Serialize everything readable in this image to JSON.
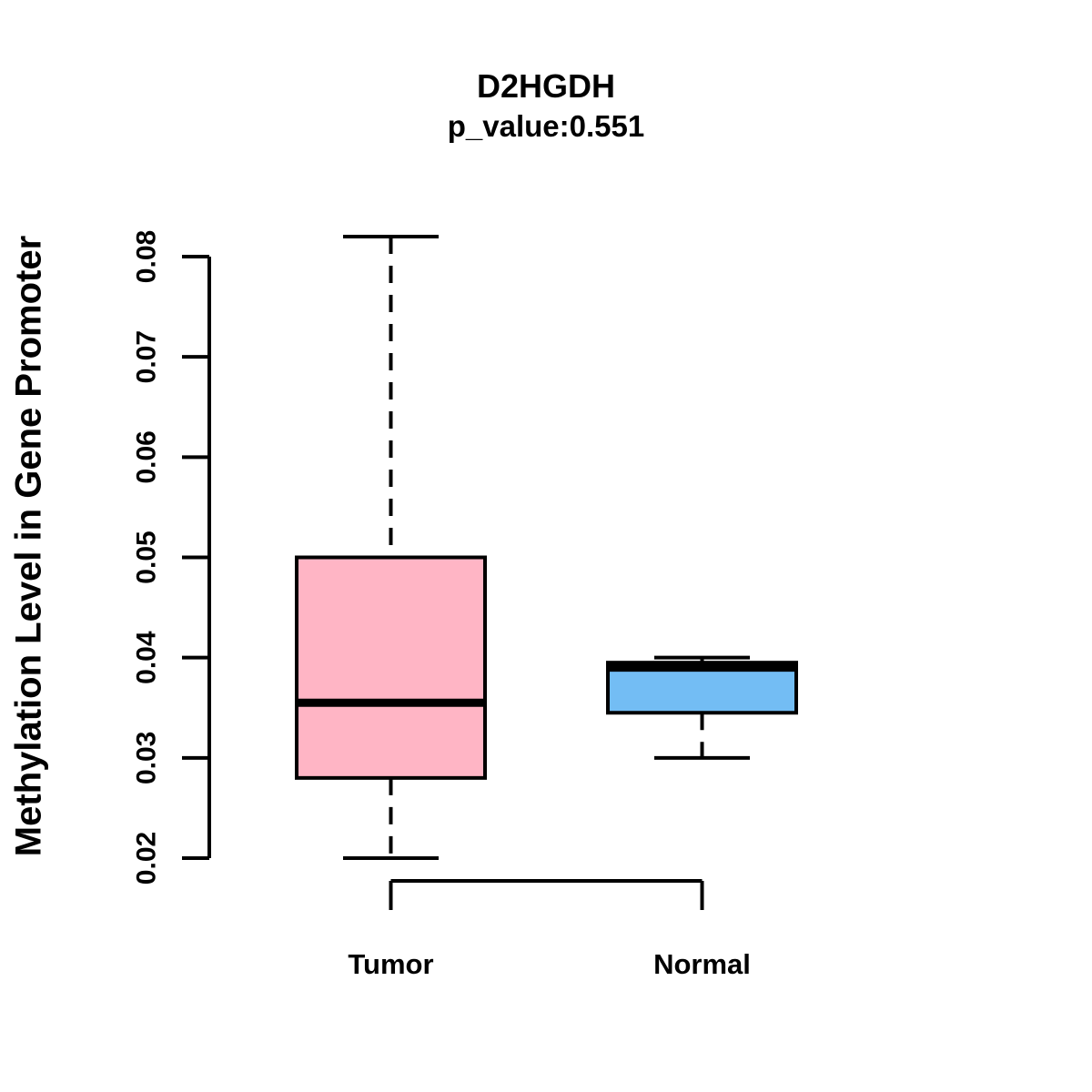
{
  "title": "D2HGDH",
  "subtitle": "p_value:0.551",
  "ylabel": "Methylation Level in Gene Promoter",
  "colors": {
    "tumor_fill": "#FFB5C5",
    "normal_fill": "#73BDF4",
    "line": "#000000",
    "background": "#FFFFFF"
  },
  "chart_data": {
    "type": "boxplot",
    "title": "D2HGDH",
    "subtitle": "p_value:0.551",
    "xlabel": "",
    "ylabel": "Methylation Level in Gene Promoter",
    "categories": [
      "Tumor",
      "Normal"
    ],
    "series": [
      {
        "name": "Tumor",
        "min": 0.02,
        "q1": 0.028,
        "median": 0.0355,
        "q3": 0.05,
        "max": 0.082,
        "fill": "#FFB5C5"
      },
      {
        "name": "Normal",
        "min": 0.03,
        "q1": 0.0345,
        "median": 0.039,
        "q3": 0.0395,
        "max": 0.04,
        "fill": "#73BDF4"
      }
    ],
    "ylim": [
      0.02,
      0.08
    ],
    "yticks": [
      0.02,
      0.03,
      0.04,
      0.05,
      0.06,
      0.07,
      0.08
    ],
    "ytick_labels": [
      "0.02",
      "0.03",
      "0.04",
      "0.05",
      "0.06",
      "0.07",
      "0.08"
    ],
    "grid": false,
    "legend": "none",
    "whisker_style": "dashed"
  }
}
